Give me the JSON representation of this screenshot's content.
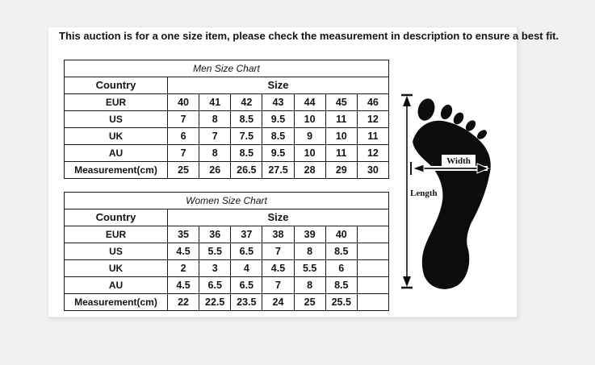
{
  "banner": {
    "text": "This auction is for a one size item, please check the measurement in description to ensure a best fit."
  },
  "men_chart": {
    "title": "Men Size Chart",
    "country_header": "Country",
    "size_header": "Size",
    "size_columns": 7,
    "rows": [
      {
        "label": "EUR",
        "values": [
          "40",
          "41",
          "42",
          "43",
          "44",
          "45",
          "46"
        ]
      },
      {
        "label": "US",
        "values": [
          "7",
          "8",
          "8.5",
          "9.5",
          "10",
          "11",
          "12"
        ]
      },
      {
        "label": "UK",
        "values": [
          "6",
          "7",
          "7.5",
          "8.5",
          "9",
          "10",
          "11"
        ]
      },
      {
        "label": "AU",
        "values": [
          "7",
          "8",
          "8.5",
          "9.5",
          "10",
          "11",
          "12"
        ]
      },
      {
        "label": "Measurement(cm)",
        "values": [
          "25",
          "26",
          "26.5",
          "27.5",
          "28",
          "29",
          "30"
        ]
      }
    ]
  },
  "women_chart": {
    "title": "Women Size Chart",
    "country_header": "Country",
    "size_header": "Size",
    "size_columns": 7,
    "rows": [
      {
        "label": "EUR",
        "values": [
          "35",
          "36",
          "37",
          "38",
          "39",
          "40",
          ""
        ]
      },
      {
        "label": "US",
        "values": [
          "4.5",
          "5.5",
          "6.5",
          "7",
          "8",
          "8.5",
          ""
        ]
      },
      {
        "label": "UK",
        "values": [
          "2",
          "3",
          "4",
          "4.5",
          "5.5",
          "6",
          ""
        ]
      },
      {
        "label": "AU",
        "values": [
          "4.5",
          "6.5",
          "6.5",
          "7",
          "8",
          "8.5",
          ""
        ]
      },
      {
        "label": "Measurement(cm)",
        "values": [
          "22",
          "22.5",
          "23.5",
          "24",
          "25",
          "25.5",
          ""
        ]
      }
    ]
  },
  "foot_diagram": {
    "width_label": "Width",
    "length_label": "Length"
  },
  "colors": {
    "page_background": "#f1f1f2",
    "panel_background": "#ffffff",
    "table_border": "#1c1c1c",
    "chart_title_gray": "#8e8e8e",
    "foot_black": "#0c0c0c"
  }
}
